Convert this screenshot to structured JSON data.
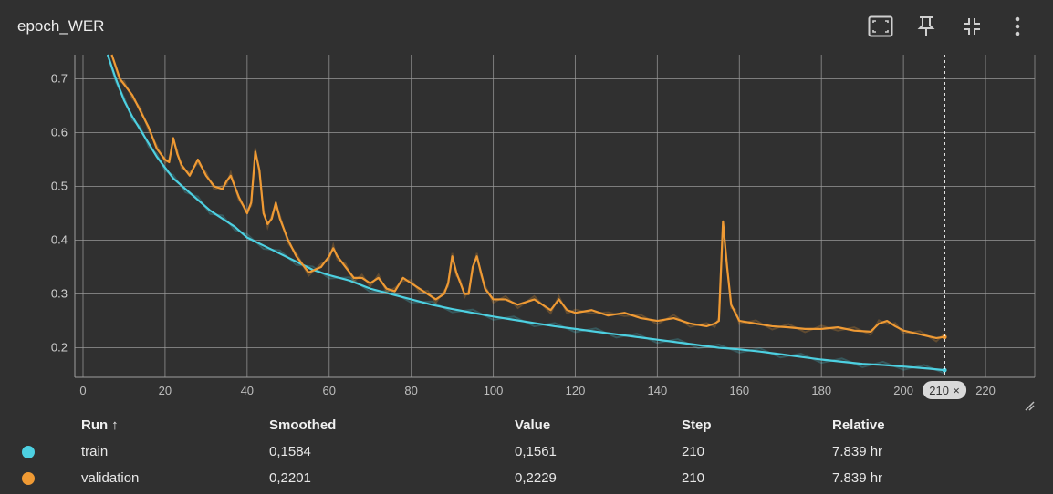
{
  "card": {
    "title": "epoch_WER",
    "tools": [
      "fit-domain-icon",
      "pin-icon",
      "collapse-icon",
      "more-vert-icon"
    ]
  },
  "chart_data": {
    "type": "line",
    "title": "epoch_WER",
    "xlabel": "",
    "ylabel": "",
    "xlim": [
      -2,
      232
    ],
    "ylim": [
      0.145,
      0.745
    ],
    "x_ticks": [
      0,
      20,
      40,
      60,
      80,
      100,
      120,
      140,
      160,
      180,
      200,
      220
    ],
    "x_tick_labels": [
      "0",
      "20",
      "40",
      "60",
      "80",
      "100",
      "120",
      "140",
      "160",
      "180",
      "200",
      "220"
    ],
    "y_ticks": [
      0.2,
      0.3,
      0.4,
      0.5,
      0.6,
      0.7
    ],
    "y_tick_labels": [
      "0.2",
      "0.3",
      "0.4",
      "0.5",
      "0.6",
      "0.7"
    ],
    "grid": true,
    "step_marker": {
      "step": 210,
      "label": "210",
      "close": "×"
    },
    "series": [
      {
        "name": "train",
        "color": "#4dd0e1",
        "x": [
          6,
          8,
          10,
          12,
          14,
          16,
          18,
          20,
          22,
          25,
          28,
          31,
          34,
          37,
          40,
          44,
          48,
          52,
          56,
          60,
          65,
          70,
          75,
          80,
          85,
          90,
          95,
          100,
          105,
          110,
          115,
          120,
          125,
          130,
          135,
          140,
          145,
          150,
          155,
          160,
          165,
          170,
          175,
          180,
          185,
          190,
          195,
          200,
          205,
          210
        ],
        "values": [
          0.745,
          0.7,
          0.66,
          0.63,
          0.605,
          0.58,
          0.555,
          0.535,
          0.515,
          0.495,
          0.475,
          0.455,
          0.44,
          0.425,
          0.405,
          0.39,
          0.375,
          0.36,
          0.345,
          0.335,
          0.325,
          0.31,
          0.3,
          0.29,
          0.28,
          0.272,
          0.265,
          0.258,
          0.252,
          0.246,
          0.24,
          0.235,
          0.23,
          0.225,
          0.22,
          0.215,
          0.21,
          0.205,
          0.2,
          0.197,
          0.193,
          0.188,
          0.183,
          0.178,
          0.174,
          0.17,
          0.168,
          0.165,
          0.162,
          0.1584
        ]
      },
      {
        "name": "validation",
        "color": "#ef9a34",
        "x": [
          7,
          9,
          10,
          12,
          14,
          16,
          18,
          20,
          21,
          22,
          23,
          24,
          26,
          28,
          30,
          32,
          34,
          35,
          36,
          38,
          40,
          41,
          42,
          43,
          44,
          45,
          46,
          47,
          48,
          50,
          52,
          55,
          58,
          60,
          61,
          62,
          64,
          66,
          68,
          70,
          72,
          74,
          76,
          78,
          80,
          82,
          84,
          86,
          88,
          89,
          90,
          91,
          92,
          93,
          94,
          95,
          96,
          97,
          98,
          100,
          103,
          106,
          110,
          114,
          116,
          118,
          120,
          124,
          128,
          132,
          136,
          140,
          144,
          148,
          152,
          154,
          155,
          156,
          157,
          158,
          159,
          160,
          164,
          168,
          172,
          176,
          180,
          184,
          188,
          192,
          194,
          196,
          198,
          200,
          204,
          208,
          210
        ],
        "values": [
          0.745,
          0.7,
          0.69,
          0.67,
          0.64,
          0.61,
          0.57,
          0.55,
          0.545,
          0.59,
          0.56,
          0.54,
          0.52,
          0.55,
          0.52,
          0.5,
          0.495,
          0.51,
          0.52,
          0.48,
          0.45,
          0.47,
          0.565,
          0.53,
          0.45,
          0.43,
          0.44,
          0.47,
          0.44,
          0.4,
          0.37,
          0.34,
          0.35,
          0.37,
          0.385,
          0.37,
          0.35,
          0.33,
          0.33,
          0.32,
          0.33,
          0.31,
          0.305,
          0.33,
          0.32,
          0.31,
          0.3,
          0.29,
          0.3,
          0.32,
          0.37,
          0.34,
          0.32,
          0.3,
          0.3,
          0.35,
          0.37,
          0.34,
          0.31,
          0.29,
          0.29,
          0.28,
          0.29,
          0.27,
          0.29,
          0.27,
          0.265,
          0.27,
          0.26,
          0.265,
          0.255,
          0.25,
          0.255,
          0.245,
          0.24,
          0.245,
          0.25,
          0.435,
          0.35,
          0.28,
          0.265,
          0.25,
          0.245,
          0.24,
          0.238,
          0.235,
          0.235,
          0.238,
          0.232,
          0.23,
          0.245,
          0.25,
          0.24,
          0.232,
          0.225,
          0.218,
          0.2201
        ]
      }
    ]
  },
  "table": {
    "headers": {
      "run": "Run",
      "sort": "↑",
      "smoothed": "Smoothed",
      "value": "Value",
      "step": "Step",
      "relative": "Relative"
    },
    "rows": [
      {
        "run": "train",
        "color": "#4dd0e1",
        "smoothed": "0,1584",
        "value": "0,1561",
        "step": "210",
        "relative": "7.839 hr"
      },
      {
        "run": "validation",
        "color": "#ef9a34",
        "smoothed": "0,2201",
        "value": "0,2229",
        "step": "210",
        "relative": "7.839 hr"
      }
    ]
  }
}
